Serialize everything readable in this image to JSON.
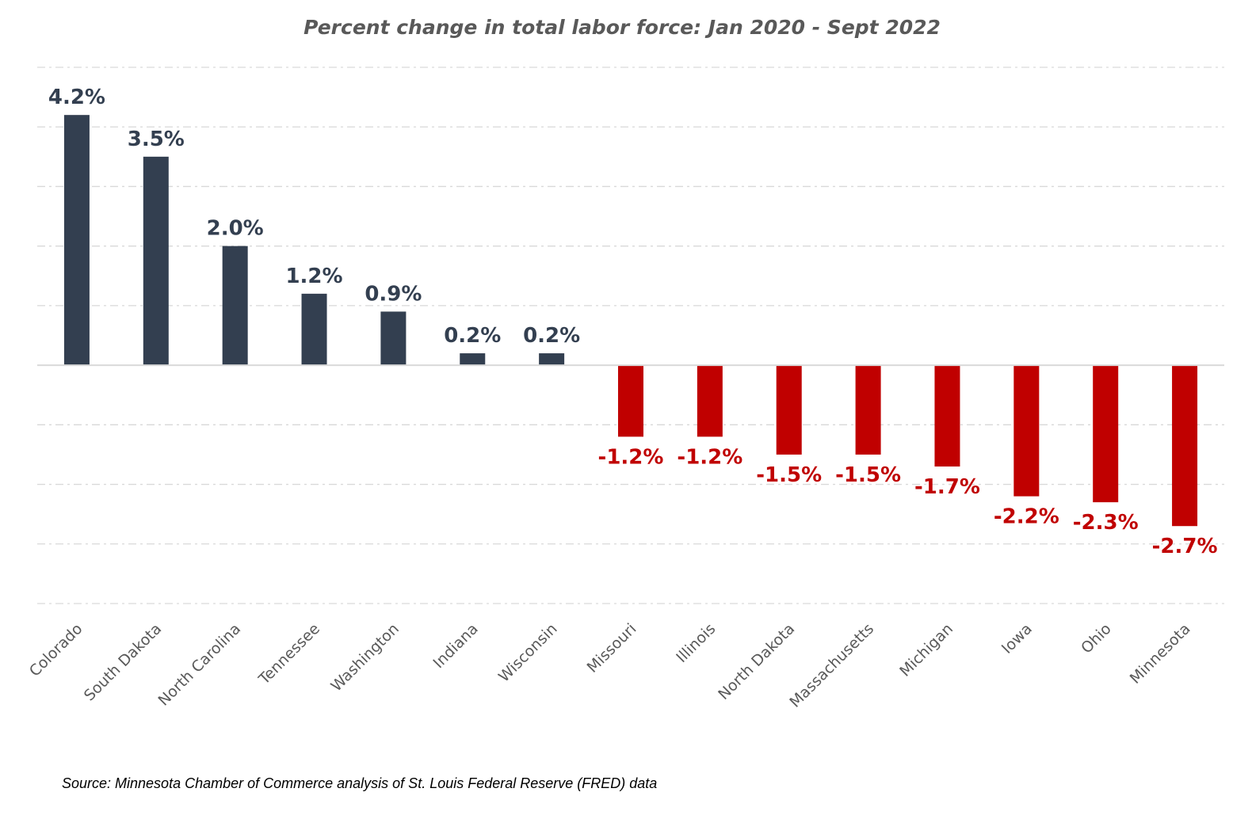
{
  "chart_data": {
    "type": "bar",
    "title": "Percent change in total labor force: Jan 2020 - Sept 2022",
    "categories": [
      "Colorado",
      "South Dakota",
      "North Carolina",
      "Tennessee",
      "Washington",
      "Indiana",
      "Wisconsin",
      "Missouri",
      "Illinois",
      "North Dakota",
      "Massachusetts",
      "Michigan",
      "Iowa",
      "Ohio",
      "Minnesota"
    ],
    "values": [
      4.2,
      3.5,
      2.0,
      1.2,
      0.9,
      0.2,
      0.2,
      -1.2,
      -1.2,
      -1.5,
      -1.5,
      -1.7,
      -2.2,
      -2.3,
      -2.7
    ],
    "data_labels": [
      "4.2%",
      "3.5%",
      "2.0%",
      "1.2%",
      "0.9%",
      "0.2%",
      "0.2%",
      "-1.2%",
      "-1.2%",
      "-1.5%",
      "-1.5%",
      "-1.7%",
      "-2.2%",
      "-2.3%",
      "-2.7%"
    ],
    "xlabel": "",
    "ylabel": "",
    "ylim": [
      -4,
      5
    ],
    "grid": true,
    "grid_step": 1,
    "colors": {
      "positive": "#333F50",
      "negative": "#C00000"
    }
  },
  "source": "Source: Minnesota Chamber of Commerce analysis of St. Louis Federal Reserve (FRED) data"
}
